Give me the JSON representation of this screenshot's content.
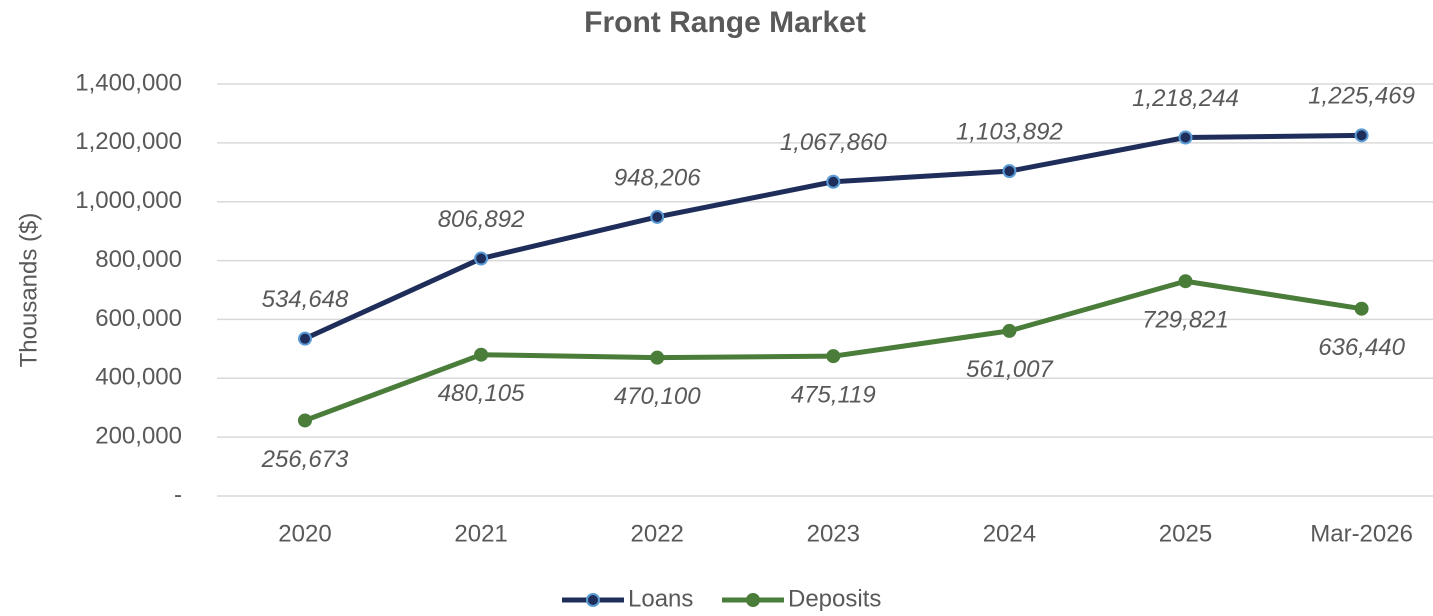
{
  "chart_data": {
    "type": "line",
    "title": "Front Range Market",
    "y_label": "Thousands ($)",
    "categories": [
      "2020",
      "2021",
      "2022",
      "2023",
      "2024",
      "2025",
      "Mar-2026"
    ],
    "series": [
      {
        "name": "Loans",
        "color": "#1f2d5a",
        "marker_edge": "#5b9bd5",
        "values": [
          534648,
          806892,
          948206,
          1067860,
          1103892,
          1218244,
          1225469
        ],
        "value_labels": [
          "534,648",
          "806,892",
          "948,206",
          "1,067,860",
          "1,103,892",
          "1,218,244",
          "1,225,469"
        ]
      },
      {
        "name": "Deposits",
        "color": "#4a7d3a",
        "marker_edge": "#4a7d3a",
        "values": [
          256673,
          480105,
          470100,
          475119,
          561007,
          729821,
          636440
        ],
        "value_labels": [
          "256,673",
          "480,105",
          "470,100",
          "475,119",
          "561,007",
          "729,821",
          "636,440"
        ]
      }
    ],
    "ylim": [
      0,
      1400000
    ],
    "yticks": [
      {
        "value": 0,
        "label": "-"
      },
      {
        "value": 200000,
        "label": "200,000"
      },
      {
        "value": 400000,
        "label": "400,000"
      },
      {
        "value": 600000,
        "label": "600,000"
      },
      {
        "value": 800000,
        "label": "800,000"
      },
      {
        "value": 1000000,
        "label": "1,000,000"
      },
      {
        "value": 1200000,
        "label": "1,200,000"
      },
      {
        "value": 1400000,
        "label": "1,400,000"
      }
    ],
    "grid": true,
    "legend": "bottom"
  }
}
